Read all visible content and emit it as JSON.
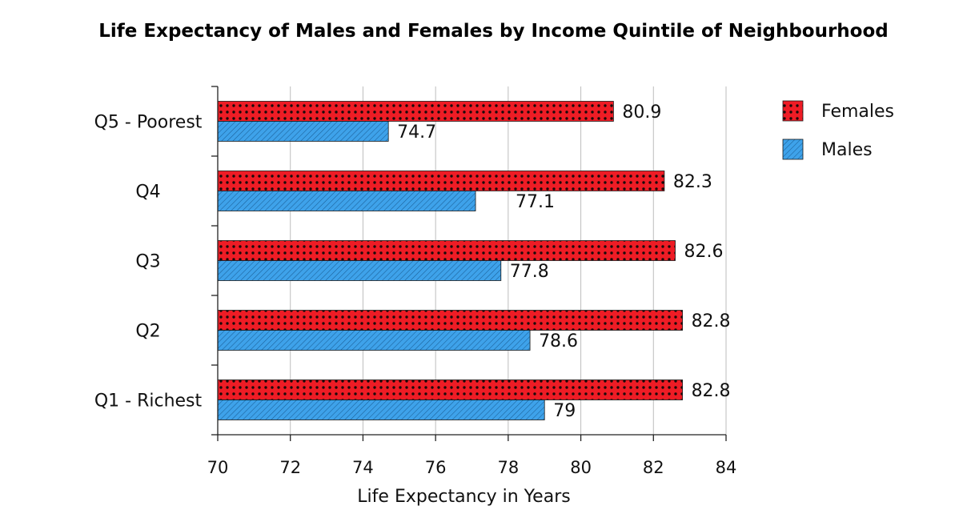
{
  "chart_data": {
    "type": "bar",
    "orientation": "horizontal",
    "title": "Life Expectancy of Males and Females by Income Quintile of Neighbourhood",
    "xlabel": "Life Expectancy in Years",
    "ylabel": "",
    "categories": [
      "Q5 - Poorest",
      "Q4",
      "Q3",
      "Q2",
      "Q1 - Richest"
    ],
    "series": [
      {
        "name": "Females",
        "values": [
          80.9,
          82.3,
          82.6,
          82.8,
          82.8
        ],
        "labels": [
          "80.9",
          "82.3",
          "82.6",
          "82.8",
          "82.8"
        ],
        "color": "#ee1c25",
        "pattern": "dots"
      },
      {
        "name": "Males",
        "values": [
          74.7,
          77.1,
          77.8,
          78.6,
          79
        ],
        "labels": [
          "74.7",
          "77.1",
          "77.8",
          "78.6",
          "79"
        ],
        "color": "#3ea2ea",
        "pattern": "diagonal-hatch"
      }
    ],
    "xlim": [
      70,
      84
    ],
    "xticks": [
      70,
      72,
      74,
      76,
      78,
      80,
      82,
      84
    ],
    "xtick_labels": [
      "70",
      "72",
      "74",
      "76",
      "78",
      "80",
      "82",
      "84"
    ],
    "grid": "vertical",
    "legend": "top-right"
  }
}
